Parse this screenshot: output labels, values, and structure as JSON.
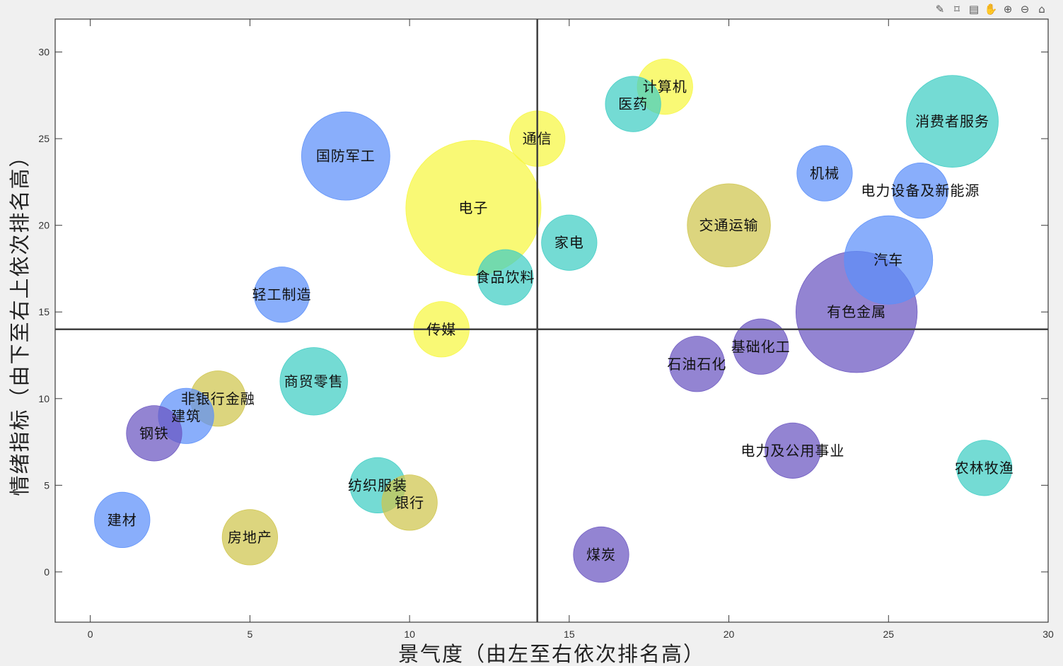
{
  "toolbar": {
    "buttons": [
      {
        "name": "brush-icon",
        "glyph": "✎"
      },
      {
        "name": "datatip-icon",
        "glyph": "⌑"
      },
      {
        "name": "legend-icon",
        "glyph": "▤"
      },
      {
        "name": "pan-hand-icon",
        "glyph": "✋"
      },
      {
        "name": "zoom-in-icon",
        "glyph": "⊕"
      },
      {
        "name": "zoom-out-icon",
        "glyph": "⊖"
      },
      {
        "name": "home-icon",
        "glyph": "⌂"
      }
    ]
  },
  "chart_data": {
    "type": "scatter",
    "title": "",
    "xlabel": "景气度（由左至右依次排名高）",
    "ylabel": "情绪指标（由下至右上依次排名高）",
    "xlim": [
      -1.1,
      30
    ],
    "ylim": [
      -2.9,
      31.9
    ],
    "xticks": [
      0,
      5,
      10,
      15,
      20,
      25,
      30
    ],
    "yticks": [
      0,
      5,
      10,
      15,
      20,
      25,
      30
    ],
    "grid": false,
    "reference_lines": {
      "x": 14,
      "y": 14
    },
    "colors": {
      "blue": "#5b8ff9",
      "yellow": "#f7f740",
      "teal": "#3fcdc4",
      "olive": "#cfc54c",
      "purple": "#6a55c0"
    },
    "points": [
      {
        "label": "电子",
        "x": 12,
        "y": 21,
        "size": 3.9,
        "color": "yellow"
      },
      {
        "label": "有色金属",
        "x": 24,
        "y": 15,
        "size": 3.5,
        "color": "purple"
      },
      {
        "label": "汽车",
        "x": 25,
        "y": 18,
        "size": 2.55,
        "color": "blue"
      },
      {
        "label": "消费者服务",
        "x": 27,
        "y": 26,
        "size": 2.65,
        "color": "teal"
      },
      {
        "label": "国防军工",
        "x": 8,
        "y": 24,
        "size": 2.55,
        "color": "blue"
      },
      {
        "label": "交通运输",
        "x": 20,
        "y": 20,
        "size": 2.4,
        "color": "olive"
      },
      {
        "label": "商贸零售",
        "x": 7,
        "y": 11,
        "size": 1.95,
        "color": "teal"
      },
      {
        "label": "计算机",
        "x": 18,
        "y": 28,
        "size": 1.6,
        "color": "yellow"
      },
      {
        "label": "医药",
        "x": 17,
        "y": 27,
        "size": 1.6,
        "color": "teal"
      },
      {
        "label": "通信",
        "x": 14,
        "y": 25,
        "size": 1.6,
        "color": "yellow"
      },
      {
        "label": "家电",
        "x": 15,
        "y": 19,
        "size": 1.6,
        "color": "teal"
      },
      {
        "label": "机械",
        "x": 23,
        "y": 23,
        "size": 1.6,
        "color": "blue"
      },
      {
        "label": "电力设备及新能源",
        "x": 26,
        "y": 22,
        "size": 1.6,
        "color": "blue"
      },
      {
        "label": "食品饮料",
        "x": 13,
        "y": 17,
        "size": 1.6,
        "color": "teal"
      },
      {
        "label": "轻工制造",
        "x": 6,
        "y": 16,
        "size": 1.6,
        "color": "blue"
      },
      {
        "label": "传媒",
        "x": 11,
        "y": 14,
        "size": 1.6,
        "color": "yellow"
      },
      {
        "label": "基础化工",
        "x": 21,
        "y": 13,
        "size": 1.6,
        "color": "purple"
      },
      {
        "label": "石油石化",
        "x": 19,
        "y": 12,
        "size": 1.6,
        "color": "purple"
      },
      {
        "label": "非银行金融",
        "x": 4,
        "y": 10,
        "size": 1.6,
        "color": "olive"
      },
      {
        "label": "建筑",
        "x": 3,
        "y": 9,
        "size": 1.6,
        "color": "blue"
      },
      {
        "label": "钢铁",
        "x": 2,
        "y": 8,
        "size": 1.6,
        "color": "purple"
      },
      {
        "label": "电力及公用事业",
        "x": 22,
        "y": 7,
        "size": 1.6,
        "color": "purple"
      },
      {
        "label": "农林牧渔",
        "x": 28,
        "y": 6,
        "size": 1.6,
        "color": "teal"
      },
      {
        "label": "纺织服装",
        "x": 9,
        "y": 5,
        "size": 1.6,
        "color": "teal"
      },
      {
        "label": "银行",
        "x": 10,
        "y": 4,
        "size": 1.6,
        "color": "olive"
      },
      {
        "label": "建材",
        "x": 1,
        "y": 3,
        "size": 1.6,
        "color": "blue"
      },
      {
        "label": "房地产",
        "x": 5,
        "y": 2,
        "size": 1.6,
        "color": "olive"
      },
      {
        "label": "煤炭",
        "x": 16,
        "y": 1,
        "size": 1.6,
        "color": "purple"
      }
    ]
  }
}
